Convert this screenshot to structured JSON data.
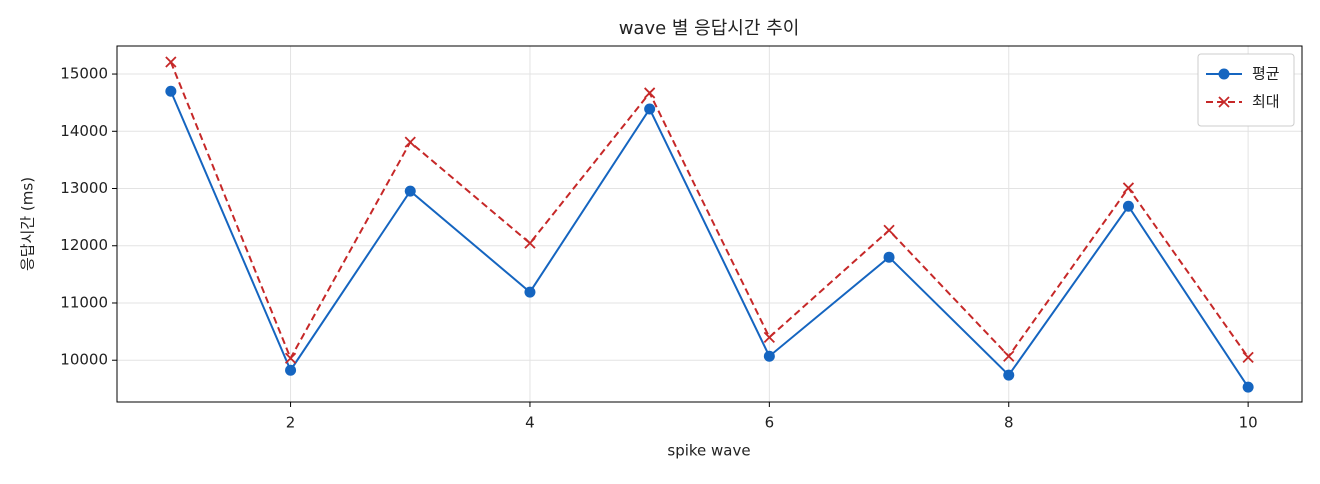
{
  "chart_data": {
    "type": "line",
    "title": "wave 별 응답시간 추이",
    "x_label": "spike wave",
    "y_label": "응답시간 (ms)",
    "x": [
      1,
      2,
      3,
      4,
      5,
      6,
      7,
      8,
      9,
      10
    ],
    "series": [
      {
        "name": "평균",
        "color": "#1565c0",
        "marker": "circle",
        "linestyle": "solid",
        "values": [
          14700,
          9825,
          12955,
          11190,
          14390,
          10070,
          11800,
          9740,
          12690,
          9530
        ]
      },
      {
        "name": "최대",
        "color": "#c62828",
        "marker": "x",
        "linestyle": "dashed",
        "values": [
          15210,
          10035,
          13810,
          12045,
          14670,
          10400,
          12270,
          10070,
          13010,
          10050
        ]
      }
    ],
    "xlim": [
      0.55,
      10.45
    ],
    "xticks": [
      2,
      4,
      6,
      8,
      10
    ],
    "ylim": [
      9270,
      15490
    ],
    "yticks": [
      10000,
      11000,
      12000,
      13000,
      14000,
      15000
    ],
    "grid": true,
    "legend": "upper right"
  }
}
